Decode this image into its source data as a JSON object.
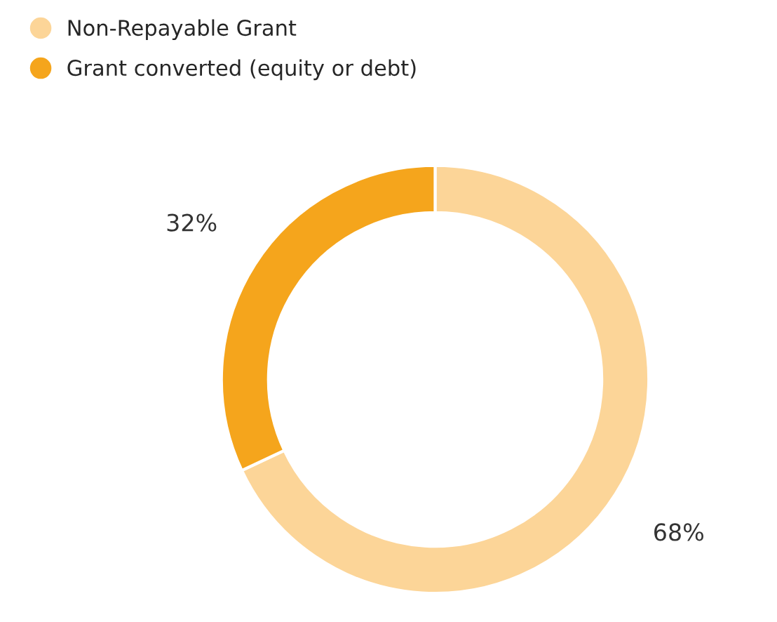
{
  "chart_data": {
    "type": "donut",
    "categories": [
      "Non-Repayable Grant",
      "Grant converted (equity or debt)"
    ],
    "values": [
      68,
      32
    ],
    "colors": [
      "#fcd598",
      "#f5a51c"
    ],
    "value_labels": [
      "68%",
      "32%"
    ],
    "legend": "top left"
  }
}
